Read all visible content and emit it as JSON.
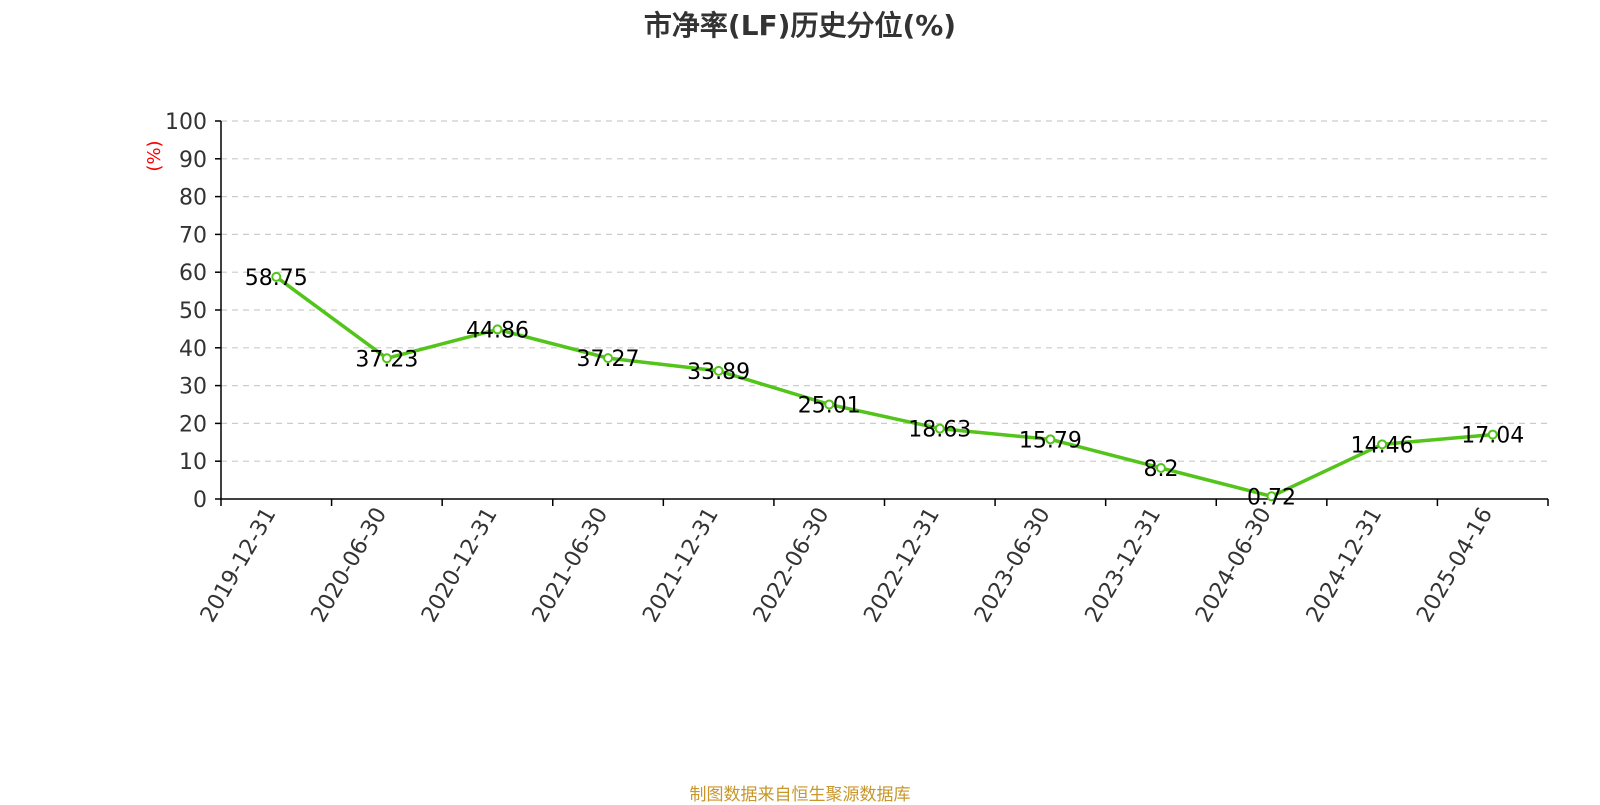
{
  "chart_data": {
    "type": "line",
    "title": "市净率(LF)历史分位(%)",
    "ylabel": "(%)",
    "ylim": [
      0,
      100
    ],
    "yticks": [
      0,
      10,
      20,
      30,
      40,
      50,
      60,
      70,
      80,
      90,
      100
    ],
    "grid": true,
    "categories": [
      "2019-12-31",
      "2020-06-30",
      "2020-12-31",
      "2021-06-30",
      "2021-12-31",
      "2022-06-30",
      "2022-12-31",
      "2023-06-30",
      "2023-12-31",
      "2024-06-30",
      "2024-12-31",
      "2025-04-16"
    ],
    "series": [
      {
        "values": [
          58.75,
          37.23,
          44.86,
          37.27,
          33.89,
          25.01,
          18.63,
          15.79,
          8.2,
          0.72,
          14.46,
          17.04
        ]
      }
    ],
    "data_labels": [
      "58.75",
      "37.23",
      "44.86",
      "37.27",
      "33.89",
      "25.01",
      "18.63",
      "15.79",
      "8.2",
      "0.72",
      "14.46",
      "17.04"
    ]
  },
  "footer": {
    "source": "制图数据来自恒生聚源数据库"
  },
  "colors": {
    "line": "#52c41a",
    "ylabel": "#ff0000",
    "source": "#c8962a"
  }
}
